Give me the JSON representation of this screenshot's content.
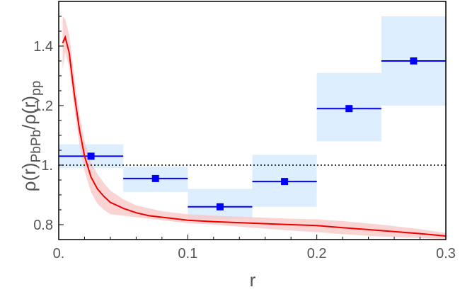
{
  "chart_data": {
    "type": "scatter",
    "xlabel": "r",
    "ylabel": {
      "rho_open": "ρ(r)",
      "sub1": "PbPb",
      "slash_rho": "/ρ(r)",
      "sub2": "pp"
    },
    "xlim": [
      0.0,
      0.3
    ],
    "ylim": [
      0.75,
      1.55
    ],
    "x_ticks": [
      {
        "value": 0.0,
        "label": "0."
      },
      {
        "value": 0.1,
        "label": "0.1"
      },
      {
        "value": 0.2,
        "label": "0.2"
      },
      {
        "value": 0.3,
        "label": "0.3"
      }
    ],
    "y_ticks": [
      {
        "value": 0.8,
        "label": "0.8"
      },
      {
        "value": 1.0,
        "label": "1."
      },
      {
        "value": 1.2,
        "label": "1.2"
      },
      {
        "value": 1.4,
        "label": "1.4"
      }
    ],
    "reference_line": {
      "y": 1.0,
      "style": "dotted",
      "color": "#000000"
    },
    "data_points": {
      "color": "#0000ff",
      "band_color": "#ddeeff",
      "points": [
        {
          "x_low": 0.0,
          "x_high": 0.05,
          "y": 1.03,
          "band_low": 0.99,
          "band_high": 1.07
        },
        {
          "x_low": 0.05,
          "x_high": 0.1,
          "y": 0.955,
          "band_low": 0.91,
          "band_high": 0.995
        },
        {
          "x_low": 0.1,
          "x_high": 0.15,
          "y": 0.86,
          "band_low": 0.82,
          "band_high": 0.92
        },
        {
          "x_low": 0.15,
          "x_high": 0.2,
          "y": 0.945,
          "band_low": 0.86,
          "band_high": 1.035
        },
        {
          "x_low": 0.2,
          "x_high": 0.25,
          "y": 1.19,
          "band_low": 1.08,
          "band_high": 1.31
        },
        {
          "x_low": 0.25,
          "x_high": 0.3,
          "y": 1.35,
          "band_low": 1.2,
          "band_high": 1.5
        }
      ]
    },
    "theory_curve": {
      "color": "#ee0000",
      "band_color": "#f8c4c4",
      "x": [
        0.003,
        0.005,
        0.008,
        0.012,
        0.016,
        0.02,
        0.025,
        0.03,
        0.035,
        0.04,
        0.05,
        0.06,
        0.07,
        0.08,
        0.1,
        0.12,
        0.15,
        0.18,
        0.2,
        0.22,
        0.25,
        0.28,
        0.3
      ],
      "y": [
        1.41,
        1.43,
        1.38,
        1.24,
        1.12,
        1.03,
        0.96,
        0.92,
        0.895,
        0.875,
        0.855,
        0.84,
        0.83,
        0.825,
        0.815,
        0.81,
        0.805,
        0.8,
        0.797,
        0.79,
        0.78,
        0.77,
        0.762
      ],
      "band_low": [
        1.32,
        1.38,
        1.33,
        1.19,
        1.07,
        0.98,
        0.91,
        0.87,
        0.85,
        0.835,
        0.83,
        0.825,
        0.82,
        0.815,
        0.805,
        0.8,
        0.79,
        0.78,
        0.775,
        0.768,
        0.76,
        0.755,
        0.752
      ],
      "band_high": [
        1.5,
        1.49,
        1.44,
        1.3,
        1.17,
        1.08,
        1.01,
        0.97,
        0.94,
        0.915,
        0.885,
        0.865,
        0.855,
        0.845,
        0.835,
        0.83,
        0.825,
        0.82,
        0.818,
        0.812,
        0.8,
        0.785,
        0.772
      ]
    }
  }
}
